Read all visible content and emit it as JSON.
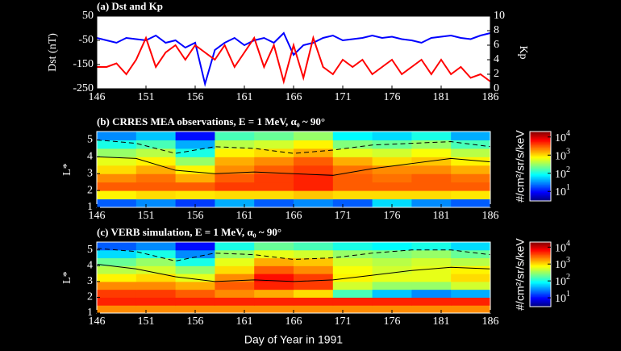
{
  "chart_data": [
    {
      "type": "line",
      "title": "(a) Dst and Kp",
      "ylabel": "Dst (nT)",
      "y2label": "Kp",
      "x": [
        146,
        147,
        148,
        149,
        150,
        151,
        152,
        153,
        154,
        155,
        156,
        157,
        158,
        159,
        160,
        161,
        162,
        163,
        164,
        165,
        166,
        167,
        168,
        169,
        170,
        171,
        172,
        173,
        174,
        175,
        176,
        177,
        178,
        179,
        180,
        181,
        182,
        183,
        184,
        185,
        186
      ],
      "series": [
        {
          "color": "#0000ff",
          "values": [
            -40,
            -50,
            -60,
            -40,
            -45,
            -50,
            -30,
            -60,
            -50,
            -80,
            -60,
            -230,
            -90,
            -60,
            -40,
            -70,
            -50,
            -40,
            -60,
            -20,
            -110,
            -70,
            -60,
            -40,
            -30,
            -50,
            -45,
            -40,
            -30,
            -40,
            -35,
            -45,
            -50,
            -60,
            -40,
            -35,
            -30,
            -40,
            -45,
            -30,
            -20
          ]
        },
        {
          "color": "#ff0000",
          "axis": "y2",
          "values": [
            3,
            3,
            3.5,
            2,
            4,
            7,
            3,
            5,
            6,
            4,
            6,
            5,
            4,
            6,
            3,
            5,
            7,
            3,
            6,
            1,
            6,
            1.5,
            7,
            3,
            2,
            4,
            3,
            4,
            2,
            3,
            4,
            2,
            3,
            4,
            2,
            4,
            2,
            3,
            1.5,
            2,
            1
          ]
        }
      ],
      "xlim": [
        146,
        186
      ],
      "xticks": [
        146,
        151,
        156,
        161,
        166,
        171,
        176,
        181,
        186
      ],
      "ylim": [
        -250,
        50
      ],
      "yticks": [
        50,
        -50,
        -150,
        -250
      ],
      "y2lim": [
        0,
        10
      ],
      "y2ticks": [
        0,
        2,
        4,
        6,
        8,
        10
      ]
    },
    {
      "type": "heatmap",
      "title": "(b) CRRES MEA observations, E = 1 MeV, α₀ ~ 90°",
      "ylabel": "L*",
      "x_edges": [
        146,
        150,
        154,
        158,
        162,
        166,
        170,
        174,
        178,
        182,
        186
      ],
      "y_edges": [
        1,
        1.5,
        2,
        2.5,
        3,
        3.5,
        4,
        4.5,
        5,
        5.5
      ],
      "values": [
        [
          20,
          30,
          15,
          40,
          20,
          30,
          20,
          60,
          30,
          20
        ],
        [
          800,
          1000,
          900,
          1000,
          1000,
          1200,
          1000,
          1000,
          1000,
          900
        ],
        [
          3000,
          3000,
          3000,
          4000,
          4000,
          5000,
          3000,
          3000,
          3000,
          3000
        ],
        [
          2000,
          2500,
          1500,
          3000,
          4000,
          5000,
          3000,
          2500,
          3000,
          2500
        ],
        [
          1000,
          1500,
          800,
          2000,
          3000,
          4000,
          2500,
          2000,
          2000,
          1500
        ],
        [
          600,
          800,
          300,
          1500,
          2000,
          3000,
          1500,
          1000,
          1200,
          800
        ],
        [
          300,
          400,
          100,
          800,
          1000,
          1500,
          600,
          500,
          700,
          400
        ],
        [
          100,
          150,
          40,
          400,
          500,
          800,
          250,
          200,
          300,
          150
        ],
        [
          30,
          50,
          10,
          150,
          200,
          300,
          80,
          60,
          100,
          40
        ]
      ],
      "lines": [
        {
          "style": "solid",
          "x": [
            146,
            150,
            154,
            158,
            162,
            166,
            170,
            174,
            178,
            182,
            186
          ],
          "values": [
            4.0,
            3.9,
            3.2,
            3.0,
            3.1,
            3.0,
            2.9,
            3.3,
            3.6,
            3.9,
            3.7
          ]
        },
        {
          "style": "dashed",
          "x": [
            146,
            150,
            154,
            158,
            162,
            166,
            170,
            174,
            178,
            182,
            186
          ],
          "values": [
            5.0,
            4.8,
            4.2,
            4.6,
            4.5,
            4.2,
            4.4,
            4.7,
            4.8,
            4.9,
            4.6
          ]
        }
      ],
      "xlim": [
        146,
        186
      ],
      "xticks": [
        146,
        151,
        156,
        161,
        166,
        171,
        176,
        181,
        186
      ],
      "ylim": [
        1,
        5.5
      ],
      "yticks": [
        1,
        2,
        3,
        4,
        5
      ],
      "colorbar_label": "#/cm²/sr/s/keV",
      "clim": [
        3,
        20000
      ],
      "cticks": [
        {
          "value": 10,
          "label": "10",
          "exp": "1"
        },
        {
          "value": 100,
          "label": "10",
          "exp": "2"
        },
        {
          "value": 1000,
          "label": "10",
          "exp": "3"
        },
        {
          "value": 10000,
          "label": "10",
          "exp": "4"
        }
      ]
    },
    {
      "type": "heatmap",
      "title": "(c) VERB simulation, E = 1 MeV, α₀ ~ 90°",
      "ylabel": "L*",
      "xlabel": "Day of Year in 1991",
      "x_edges": [
        146,
        150,
        154,
        158,
        162,
        166,
        170,
        174,
        178,
        182,
        186
      ],
      "y_edges": [
        1,
        1.5,
        2,
        2.5,
        3,
        3.5,
        4,
        4.5,
        5,
        5.5
      ],
      "values": [
        [
          2000,
          2000,
          2000,
          2000,
          2000,
          2000,
          2000,
          2000,
          2000,
          2000
        ],
        [
          5000,
          5000,
          5000,
          5000,
          5000,
          5000,
          5000,
          5000,
          5000,
          5000
        ],
        [
          4000,
          4000,
          3000,
          2000,
          1500,
          1000,
          150,
          50,
          30,
          40
        ],
        [
          2000,
          2000,
          1500,
          3000,
          5000,
          4000,
          500,
          300,
          300,
          500
        ],
        [
          800,
          1000,
          600,
          2000,
          6000,
          4000,
          800,
          600,
          600,
          1000
        ],
        [
          400,
          500,
          300,
          1000,
          3000,
          2000,
          700,
          500,
          600,
          800
        ],
        [
          200,
          300,
          100,
          600,
          1500,
          1200,
          500,
          400,
          500,
          400
        ],
        [
          60,
          100,
          30,
          300,
          600,
          500,
          300,
          250,
          300,
          200
        ],
        [
          20,
          30,
          10,
          100,
          200,
          150,
          100,
          80,
          100,
          60
        ]
      ],
      "lines": [
        {
          "style": "solid",
          "x": [
            146,
            150,
            154,
            158,
            162,
            166,
            170,
            174,
            178,
            182,
            186
          ],
          "values": [
            4.1,
            3.8,
            3.3,
            3.0,
            3.1,
            3.0,
            3.1,
            3.4,
            3.7,
            3.9,
            3.8
          ]
        },
        {
          "style": "dashed",
          "x": [
            146,
            150,
            154,
            158,
            162,
            166,
            170,
            174,
            178,
            182,
            186
          ],
          "values": [
            5.1,
            4.9,
            4.3,
            4.8,
            4.7,
            4.4,
            4.5,
            4.8,
            5.0,
            5.0,
            4.7
          ]
        }
      ],
      "xlim": [
        146,
        186
      ],
      "xticks": [
        146,
        151,
        156,
        161,
        166,
        171,
        176,
        181,
        186
      ],
      "ylim": [
        1,
        5.5
      ],
      "yticks": [
        1,
        2,
        3,
        4,
        5
      ],
      "colorbar_label": "#/cm²/sr/s/keV",
      "clim": [
        3,
        20000
      ],
      "cticks": [
        {
          "value": 10,
          "label": "10",
          "exp": "1"
        },
        {
          "value": 100,
          "label": "10",
          "exp": "2"
        },
        {
          "value": 1000,
          "label": "10",
          "exp": "3"
        },
        {
          "value": 10000,
          "label": "10",
          "exp": "4"
        }
      ]
    }
  ]
}
